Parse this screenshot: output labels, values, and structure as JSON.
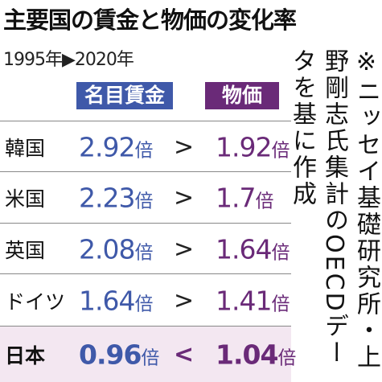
{
  "header": {
    "title": "主要国の賃金と物価の変化率",
    "subtitle": "1995年▶2020年"
  },
  "table": {
    "columns": [
      "名目賃金",
      "物価"
    ],
    "rows": [
      {
        "country": "韓国",
        "wage": "2.92",
        "wage_unit": "倍",
        "compare": ">",
        "price": "1.92",
        "price_unit": "倍"
      },
      {
        "country": "米国",
        "wage": "2.23",
        "wage_unit": "倍",
        "compare": ">",
        "price": "1.7",
        "price_unit": "倍"
      },
      {
        "country": "英国",
        "wage": "2.08",
        "wage_unit": "倍",
        "compare": ">",
        "price": "1.64",
        "price_unit": "倍"
      },
      {
        "country": "ドイツ",
        "wage": "1.64",
        "wage_unit": "倍",
        "compare": ">",
        "price": "1.41",
        "price_unit": "倍"
      },
      {
        "country": "日本",
        "wage": "0.96",
        "wage_unit": "倍",
        "compare": "<",
        "price": "1.04",
        "price_unit": "倍"
      }
    ]
  },
  "note": "※ニッセイ基礎研究所・上野剛志氏集計のOECDデータを基に作成"
}
